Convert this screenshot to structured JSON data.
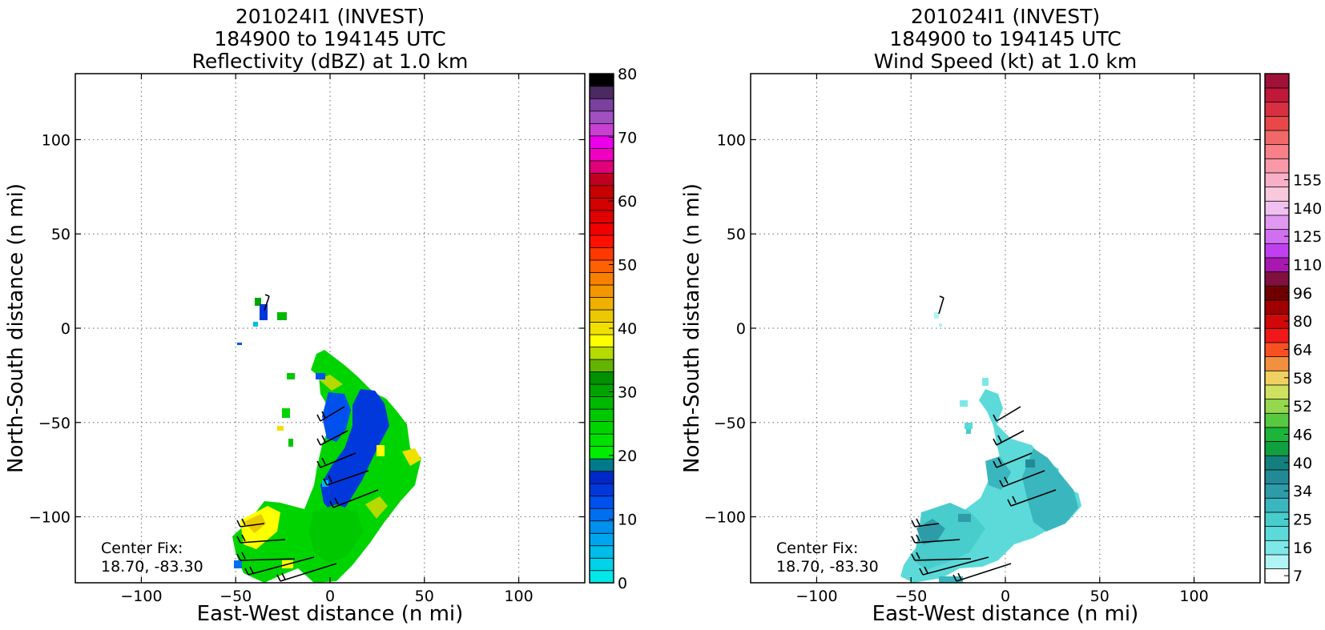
{
  "chart_data": [
    {
      "type": "heatmap",
      "title_lines": [
        "201024I1 (INVEST)",
        "184900 to 194145 UTC",
        "Reflectivity (dBZ) at 1.0 km"
      ],
      "xlabel": "East-West distance (n mi)",
      "ylabel": "North-South distance (n mi)",
      "xlim": [
        -135,
        135
      ],
      "ylim": [
        -135,
        135
      ],
      "x_ticks": [
        -100,
        -50,
        0,
        50,
        100
      ],
      "y_ticks": [
        -100,
        -50,
        0,
        50,
        100
      ],
      "x_tick_labels": [
        "−100",
        "−50",
        "0",
        "50",
        "100"
      ],
      "y_tick_labels": [
        "−100",
        "−50",
        "0",
        "50",
        "100"
      ],
      "grid": true,
      "annotation": [
        "Center Fix:",
        "18.70, -83.30"
      ],
      "colorbar": {
        "min": 0,
        "max": 80,
        "tick_values": [
          0,
          10,
          20,
          30,
          40,
          50,
          60,
          70,
          80
        ],
        "tick_labels": [
          "0",
          "10",
          "20",
          "30",
          "40",
          "50",
          "60",
          "70",
          "80"
        ],
        "colors": [
          "#00e8e8",
          "#00d2e8",
          "#00bce8",
          "#00a4ee",
          "#0090ee",
          "#0070f0",
          "#0050ee",
          "#0038dc",
          "#0028c8",
          "#007a8a",
          "#00ec00",
          "#00e000",
          "#00d400",
          "#00c800",
          "#00b800",
          "#00a400",
          "#009000",
          "#62b400",
          "#b4da00",
          "#ffff00",
          "#f0e000",
          "#ecc800",
          "#f0b000",
          "#f49600",
          "#f88000",
          "#ff6000",
          "#ff3800",
          "#ff1000",
          "#f00000",
          "#e00000",
          "#d20000",
          "#c80000",
          "#c00020",
          "#e00078",
          "#f000c0",
          "#ea00ea",
          "#c840d0",
          "#a050c0",
          "#7c40a0",
          "#4a2a60",
          "#000000"
        ]
      }
    },
    {
      "type": "heatmap",
      "title_lines": [
        "201024I1 (INVEST)",
        "184900 to 194145 UTC",
        "Wind Speed (kt) at 1.0 km"
      ],
      "xlabel": "East-West distance (n mi)",
      "ylabel": "North-South distance (n mi)",
      "xlim": [
        -135,
        135
      ],
      "ylim": [
        -135,
        135
      ],
      "x_ticks": [
        -100,
        -50,
        0,
        50,
        100
      ],
      "y_ticks": [
        -100,
        -50,
        0,
        50,
        100
      ],
      "x_tick_labels": [
        "−100",
        "−50",
        "0",
        "50",
        "100"
      ],
      "y_tick_labels": [
        "−100",
        "−50",
        "0",
        "50",
        "100"
      ],
      "grid": true,
      "annotation": [
        "Center Fix:",
        "18.70, -83.30"
      ],
      "colorbar": {
        "tick_labels": [
          "7",
          "16",
          "25",
          "34",
          "40",
          "46",
          "52",
          "58",
          "64",
          "80",
          "96",
          "110",
          "125",
          "140",
          "155"
        ],
        "tick_bins": [
          0,
          2,
          4,
          6,
          8,
          10,
          12,
          14,
          16,
          18,
          20,
          22,
          24,
          26,
          28
        ],
        "colors": [
          "#ffffff",
          "#b0f4f4",
          "#7ee8e8",
          "#5cdada",
          "#48cccc",
          "#3ab6be",
          "#2e9ca8",
          "#228a96",
          "#14807e",
          "#10a040",
          "#1cb43a",
          "#58c840",
          "#94d84e",
          "#d0e060",
          "#f0d060",
          "#f09040",
          "#f85020",
          "#f01818",
          "#d00808",
          "#a00000",
          "#700000",
          "#801040",
          "#a818b0",
          "#c040f0",
          "#d070f0",
          "#e098f0",
          "#f0c0f0",
          "#f8c8dc",
          "#f8b0c8",
          "#f898a8",
          "#f88088",
          "#f06868",
          "#e84848",
          "#d83040",
          "#c01838",
          "#a01038"
        ]
      }
    }
  ]
}
